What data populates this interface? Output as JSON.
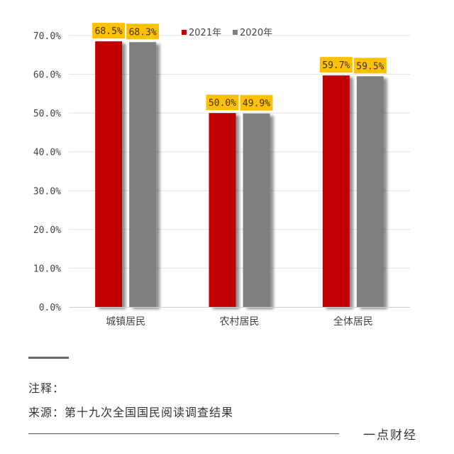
{
  "chart_data": {
    "type": "bar",
    "categories": [
      "城镇居民",
      "农村居民",
      "全体居民"
    ],
    "series": [
      {
        "name": "2021年",
        "values": [
          68.5,
          50.0,
          59.7
        ],
        "labels": [
          "68.5%",
          "50.0%",
          "59.7%"
        ],
        "color": "#c00000"
      },
      {
        "name": "2020年",
        "values": [
          68.3,
          49.9,
          59.5
        ],
        "labels": [
          "68.3%",
          "49.9%",
          "59.5%"
        ],
        "color": "#7f7f7f"
      }
    ],
    "ylim": [
      0,
      70
    ],
    "yticks": [
      "0.0%",
      "10.0%",
      "20.0%",
      "30.0%",
      "40.0%",
      "50.0%",
      "60.0%",
      "70.0%"
    ],
    "grid": true,
    "legend_position": "top-right",
    "label_background": "#ffc000"
  },
  "footer": {
    "note": "注释：",
    "source": "来源：第十九次全国国民阅读调查结果",
    "brand": "一点财经"
  }
}
